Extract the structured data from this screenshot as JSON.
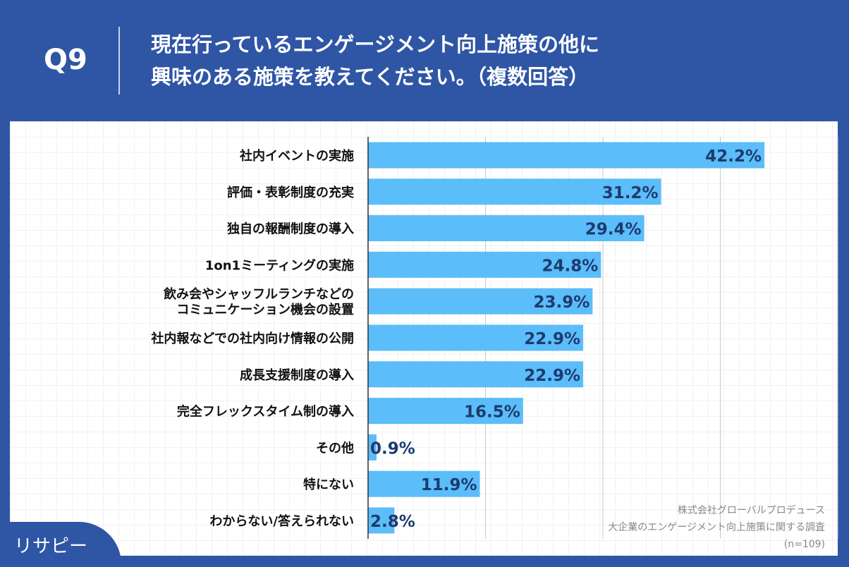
{
  "header": {
    "q": "Q9",
    "title": "現在行っているエンゲージメント向上施策の他に\n興味のある施策を教えてください。（複数回答）"
  },
  "colors": {
    "background": "#2f55a5",
    "bar": "#5bbdf9",
    "value_label": "#1d3b6e"
  },
  "chart_data": {
    "type": "bar",
    "orientation": "horizontal",
    "grid": true,
    "xlim": [
      0,
      50
    ],
    "categories": [
      "社内イベントの実施",
      "評価・表彰制度の充実",
      "独自の報酬制度の導入",
      "1on1ミーティングの実施",
      "飲み会やシャッフルランチなどの\nコミュニケーション機会の設置",
      "社内報などでの社内向け情報の公開",
      "成長支援制度の導入",
      "完全フレックスタイム制の導入",
      "その他",
      "特にない",
      "わからない/答えられない"
    ],
    "values": [
      42.2,
      31.2,
      29.4,
      24.8,
      23.9,
      22.9,
      22.9,
      16.5,
      0.9,
      11.9,
      2.8
    ],
    "labels": [
      "42.2%",
      "31.2%",
      "29.4%",
      "24.8%",
      "23.9%",
      "22.9%",
      "22.9%",
      "16.5%",
      "0.9%",
      "11.9%",
      "2.8%"
    ]
  },
  "source": {
    "company": "株式会社グローバルプロデュース",
    "survey": "大企業のエンゲージメント向上施策に関する調査",
    "n": "(n=109)"
  },
  "logo": {
    "text": "リサピー"
  }
}
